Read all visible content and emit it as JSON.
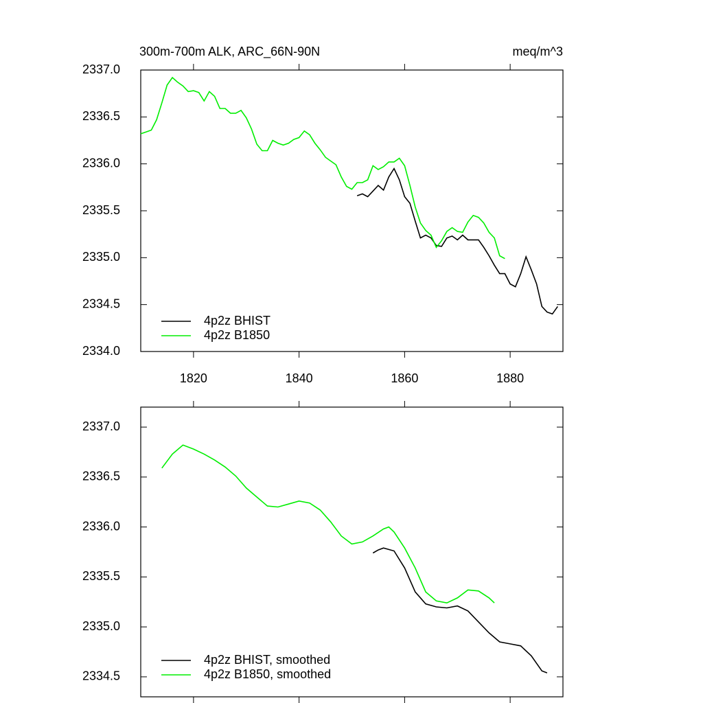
{
  "chart_data": [
    {
      "type": "line",
      "title": "300m-700m ALK, ARC_66N-90N",
      "units": "meq/m^3",
      "xlim": [
        1810,
        1890
      ],
      "xticks": [
        1820,
        1840,
        1860,
        1880
      ],
      "ylim": [
        2334,
        2337
      ],
      "yticks": [
        {
          "value": 2334,
          "label": "2334.0"
        },
        2334.5,
        {
          "value": 2335,
          "label": "2335.0"
        },
        2335.5,
        {
          "value": 2336,
          "label": "2336.0"
        },
        2336.5,
        {
          "value": 2337,
          "label": "2337.0"
        }
      ],
      "legend": "lower left",
      "series": [
        {
          "name": "4p2z BHIST",
          "color": "#000000",
          "x": [
            1851,
            1852,
            1853,
            1854,
            1855,
            1856,
            1857,
            1858,
            1859,
            1860,
            1861,
            1862,
            1863,
            1864,
            1865,
            1866,
            1867,
            1868,
            1869,
            1870,
            1871,
            1872,
            1873,
            1874,
            1875,
            1876,
            1877,
            1878,
            1879,
            1880,
            1881,
            1882,
            1883,
            1884,
            1885,
            1886,
            1887,
            1888,
            1889
          ],
          "values": [
            2335.66,
            2335.68,
            2335.65,
            2335.71,
            2335.77,
            2335.72,
            2335.86,
            2335.95,
            2335.83,
            2335.65,
            2335.58,
            2335.39,
            2335.21,
            2335.24,
            2335.21,
            2335.13,
            2335.12,
            2335.21,
            2335.23,
            2335.19,
            2335.24,
            2335.19,
            2335.19,
            2335.19,
            2335.11,
            2335.02,
            2334.92,
            2334.83,
            2334.83,
            2334.72,
            2334.69,
            2334.83,
            2335.01,
            2334.87,
            2334.72,
            2334.48,
            2334.42,
            2334.4,
            2334.48
          ]
        },
        {
          "name": "4p2z B1850",
          "color": "#00ee00",
          "x": [
            1810,
            1811,
            1812,
            1813,
            1814,
            1815,
            1816,
            1817,
            1818,
            1819,
            1820,
            1821,
            1822,
            1823,
            1824,
            1825,
            1826,
            1827,
            1828,
            1829,
            1830,
            1831,
            1832,
            1833,
            1834,
            1835,
            1836,
            1837,
            1838,
            1839,
            1840,
            1841,
            1842,
            1843,
            1844,
            1845,
            1846,
            1847,
            1848,
            1849,
            1850,
            1851,
            1852,
            1853,
            1854,
            1855,
            1856,
            1857,
            1858,
            1859,
            1860,
            1861,
            1862,
            1863,
            1864,
            1865,
            1866,
            1867,
            1868,
            1869,
            1870,
            1871,
            1872,
            1873,
            1874,
            1875,
            1876,
            1877,
            1878,
            1879
          ],
          "values": [
            2336.32,
            2336.34,
            2336.36,
            2336.47,
            2336.65,
            2336.84,
            2336.92,
            2336.87,
            2336.83,
            2336.77,
            2336.78,
            2336.76,
            2336.67,
            2336.77,
            2336.72,
            2336.59,
            2336.59,
            2336.54,
            2336.54,
            2336.57,
            2336.49,
            2336.37,
            2336.21,
            2336.14,
            2336.14,
            2336.25,
            2336.22,
            2336.2,
            2336.22,
            2336.26,
            2336.28,
            2336.35,
            2336.31,
            2336.22,
            2336.15,
            2336.07,
            2336.03,
            2335.99,
            2335.86,
            2335.76,
            2335.73,
            2335.8,
            2335.8,
            2335.83,
            2335.98,
            2335.94,
            2335.97,
            2336.02,
            2336.02,
            2336.06,
            2335.98,
            2335.77,
            2335.54,
            2335.37,
            2335.29,
            2335.24,
            2335.11,
            2335.18,
            2335.28,
            2335.32,
            2335.28,
            2335.27,
            2335.38,
            2335.45,
            2335.43,
            2335.37,
            2335.27,
            2335.21,
            2335.02,
            2334.99
          ]
        }
      ]
    },
    {
      "type": "line",
      "xlim": [
        1810,
        1890
      ],
      "ylim": [
        2334.3,
        2337.2
      ],
      "yticks": [
        2334.5,
        {
          "value": 2335,
          "label": "2335.0"
        },
        2335.5,
        {
          "value": 2336,
          "label": "2336.0"
        },
        2336.5,
        {
          "value": 2337,
          "label": "2337.0"
        }
      ],
      "legend": "lower left",
      "series": [
        {
          "name": "4p2z BHIST, smoothed",
          "color": "#000000",
          "x": [
            1854,
            1855,
            1856,
            1858,
            1860,
            1862,
            1864,
            1866,
            1868,
            1870,
            1872,
            1874,
            1876,
            1878,
            1880,
            1882,
            1884,
            1886,
            1887
          ],
          "values": [
            2335.74,
            2335.77,
            2335.79,
            2335.76,
            2335.59,
            2335.35,
            2335.23,
            2335.2,
            2335.19,
            2335.21,
            2335.16,
            2335.05,
            2334.94,
            2334.85,
            2334.83,
            2334.81,
            2334.71,
            2334.56,
            2334.54
          ]
        },
        {
          "name": "4p2z B1850, smoothed",
          "color": "#00ee00",
          "x": [
            1814,
            1816,
            1818,
            1820,
            1822,
            1824,
            1826,
            1828,
            1830,
            1832,
            1834,
            1836,
            1838,
            1840,
            1842,
            1844,
            1846,
            1848,
            1850,
            1852,
            1854,
            1856,
            1857,
            1858,
            1860,
            1862,
            1864,
            1866,
            1868,
            1870,
            1872,
            1874,
            1876,
            1877
          ],
          "values": [
            2336.59,
            2336.73,
            2336.82,
            2336.78,
            2336.73,
            2336.67,
            2336.6,
            2336.51,
            2336.39,
            2336.3,
            2336.21,
            2336.2,
            2336.23,
            2336.26,
            2336.24,
            2336.17,
            2336.05,
            2335.91,
            2335.83,
            2335.85,
            2335.91,
            2335.98,
            2336.0,
            2335.95,
            2335.79,
            2335.59,
            2335.35,
            2335.26,
            2335.24,
            2335.29,
            2335.37,
            2335.36,
            2335.29,
            2335.24
          ]
        }
      ]
    }
  ]
}
